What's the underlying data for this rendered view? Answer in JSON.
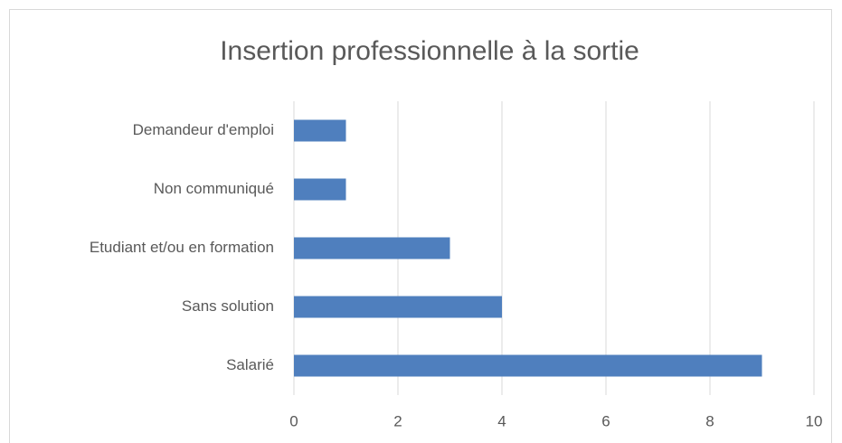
{
  "chart_data": {
    "type": "hbar",
    "title": "Insertion professionnelle à la sortie",
    "categories": [
      "Demandeur d'emploi",
      "Non communiqué",
      "Etudiant et/ou en formation",
      "Sans solution",
      "Salarié"
    ],
    "values": [
      1,
      1,
      3,
      4,
      9
    ],
    "color": "#4f7fbe",
    "xlim": [
      0,
      10
    ],
    "xticks": [
      0,
      2,
      4,
      6,
      8,
      10
    ],
    "grid": true
  }
}
